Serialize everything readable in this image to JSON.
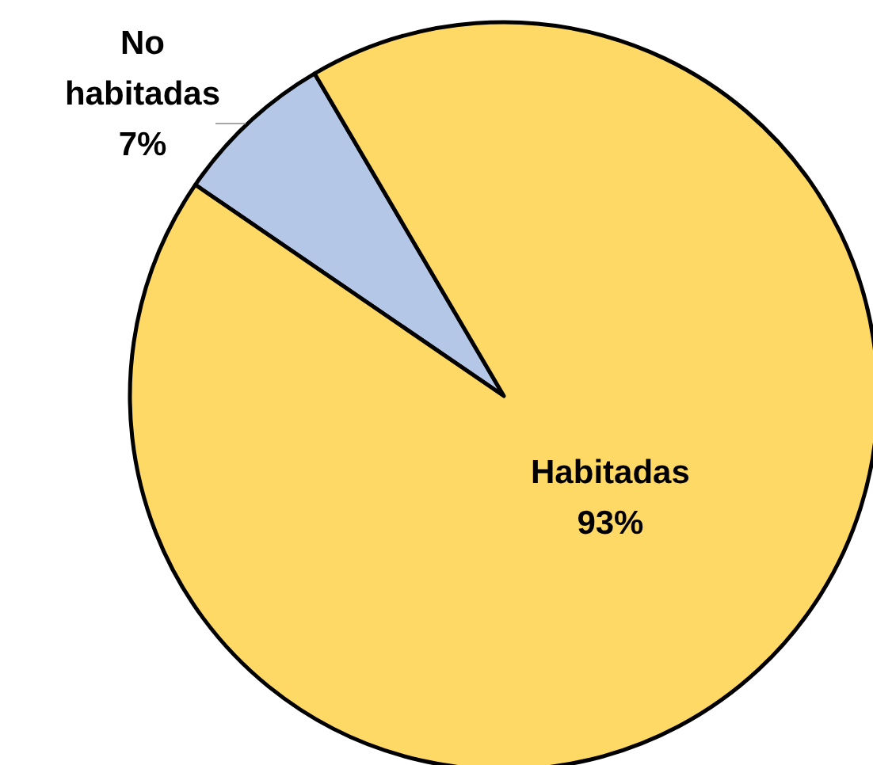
{
  "chart_data": {
    "type": "pie",
    "categories": [
      "No habitadas",
      "Habitadas"
    ],
    "values": [
      7,
      93
    ],
    "colors": [
      "#b4c7e7",
      "#ffd966"
    ],
    "value_labels": [
      "7%",
      "93%"
    ]
  }
}
